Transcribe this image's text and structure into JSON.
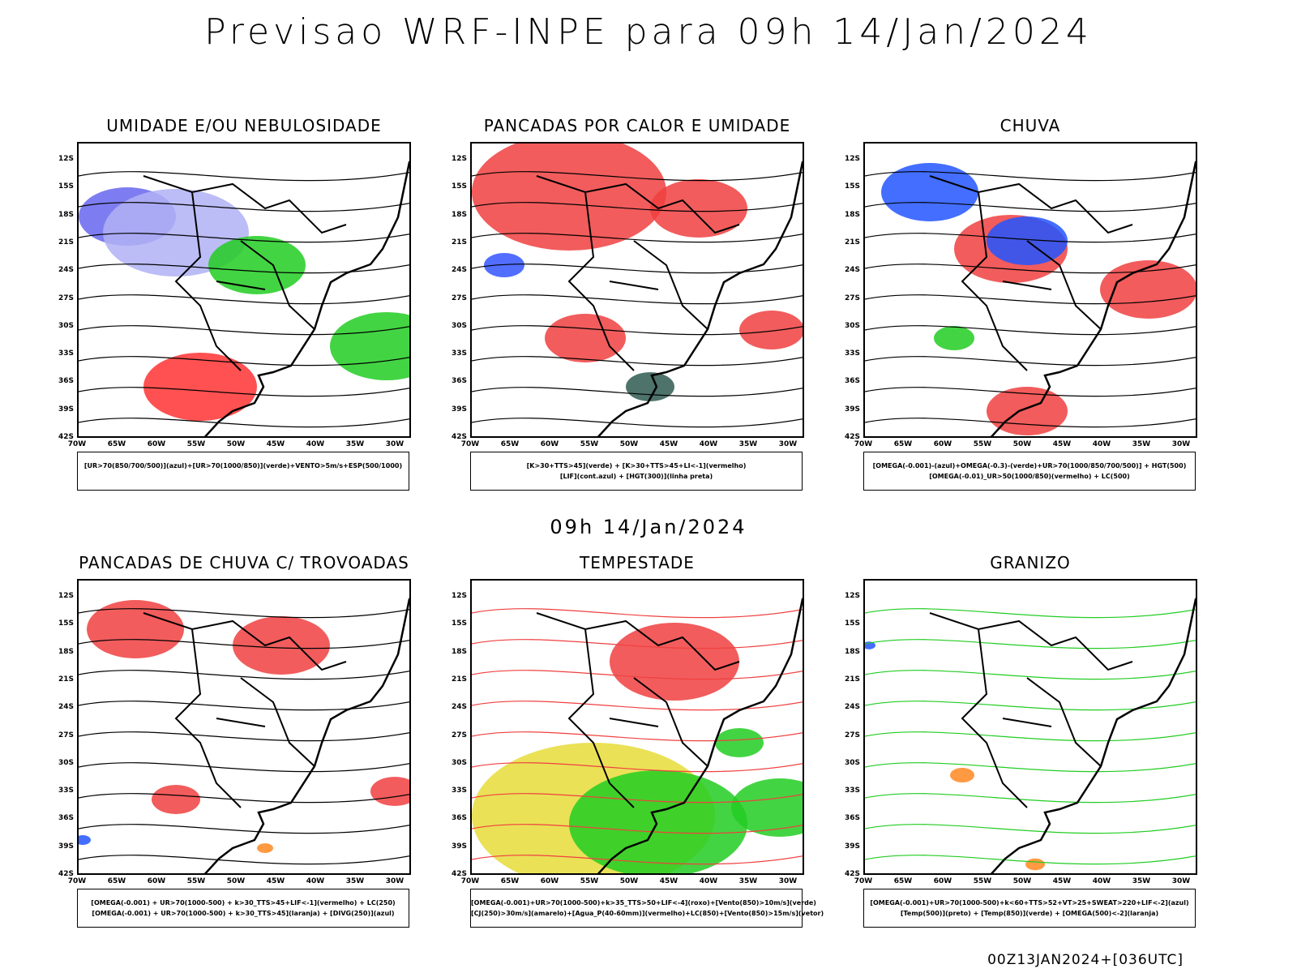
{
  "title": "Previsao WRF-INPE  para 09h 14/Jan/2024",
  "subtitle": "09h 14/Jan/2024",
  "footer": "00Z13JAN2024+[036UTC]",
  "lat_ticks": [
    "12S",
    "15S",
    "18S",
    "21S",
    "24S",
    "27S",
    "30S",
    "33S",
    "36S",
    "39S",
    "42S"
  ],
  "lon_ticks": [
    "70W",
    "65W",
    "60W",
    "55W",
    "50W",
    "45W",
    "40W",
    "35W",
    "30W"
  ],
  "panels": [
    {
      "title": "UMIDADE E/OU NEBULOSIDADE",
      "legend": [
        "[UR>70(850/700/500)](azul)+[UR>70(1000/850)](verde)+VENTO>5m/s+ESP(500/1000)"
      ],
      "colors": [
        "#6666ee",
        "#b0b0f4",
        "#22cc22",
        "#ff3333"
      ]
    },
    {
      "title": "PANCADAS POR CALOR E UMIDADE",
      "legend": [
        "[K>30+TTS>45](verde) + [K>30+TTS>45+LI<-1](vermelho)",
        "[LIF](cont.azul) + [HGT(300)](linha preta)"
      ],
      "colors": [
        "#f04040",
        "#2f5a50",
        "#3355ff"
      ]
    },
    {
      "title": "CHUVA",
      "legend": [
        "[OMEGA(-0.001)-(azul)+OMEGA(-0.3)-(verde)+UR>70(1000/850/700/500)] + HGT(500)",
        "[OMEGA(-0.01)_UR>50(1000/850)(vermelho) + LC(500)"
      ],
      "colors": [
        "#f04040",
        "#2255ff",
        "#22cc22"
      ]
    },
    {
      "title": "PANCADAS DE CHUVA C/ TROVOADAS",
      "legend": [
        "[OMEGA(-0.001) + UR>70(1000-500) + k>30_TTS>45+LIF<-1](vermelho) + LC(250)",
        "[OMEGA(-0.001) + UR>70(1000-500) + k>30_TTS>45](laranja) + [DIVG(250)](azul)"
      ],
      "colors": [
        "#f04040",
        "#ff8822",
        "#2255ff"
      ]
    },
    {
      "title": "TEMPESTADE",
      "legend": [
        "[OMEGA(-0.001)+UR>70(1000-500)+k>35_TTS>50+LIF<-4](roxo)+[Vento(850)>10m/s](verde)",
        "[CJ(250)>30m/s](amarelo)+[Agua_P(40-60mm)](vermelho)+LC(850)+[Vento(850)>15m/s](vetor)"
      ],
      "colors": [
        "#e6dc3a",
        "#22cc22",
        "#f04040"
      ]
    },
    {
      "title": "GRANIZO",
      "legend": [
        "[OMEGA(-0.001)+UR>70(1000-500)+k<60+TTS>52+VT>25+SWEAT>220+LIF<-2](azul)",
        "[Temp(500)](preto) + [Temp(850)](verde) + [OMEGA(500)<-2](laranja)"
      ],
      "colors": [
        "#22cc22",
        "#ff8822",
        "#2255ff"
      ]
    }
  ]
}
